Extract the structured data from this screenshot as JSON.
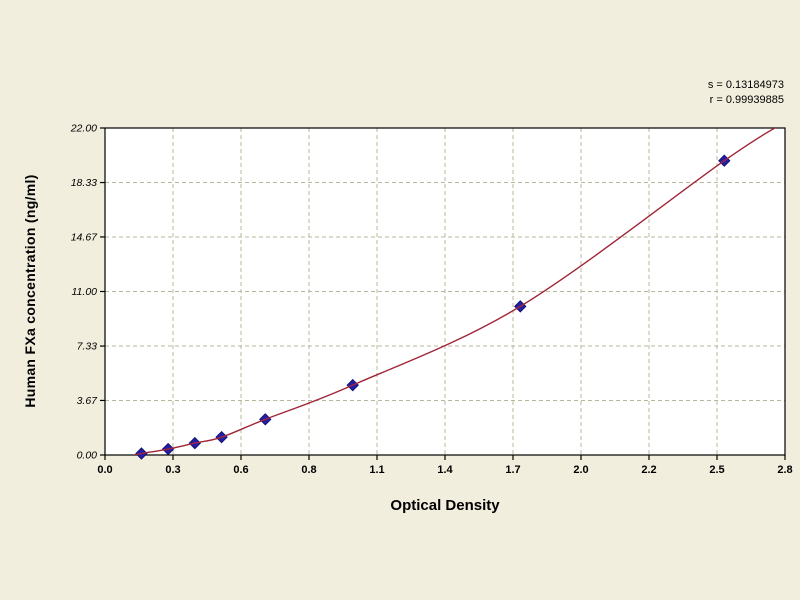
{
  "page": {
    "background_color": "#f1eedd"
  },
  "stats": {
    "s_label": "s = 0.13184973",
    "r_label": "r = 0.99939885"
  },
  "chart_data": {
    "type": "scatter",
    "title": "",
    "xlabel": "Optical Density",
    "ylabel": "Human FXa concentration (ng/ml)",
    "xlim": [
      0,
      2.8
    ],
    "ylim": [
      0,
      22
    ],
    "x_ticks": [
      0,
      0.28,
      0.56,
      0.84,
      1.12,
      1.4,
      1.68,
      1.96,
      2.24,
      2.52,
      2.8
    ],
    "x_tick_labels": [
      "0.0",
      "0.3",
      "0.6",
      "0.8",
      "1.1",
      "1.4",
      "1.7",
      "2.0",
      "2.2",
      "2.5",
      "2.8"
    ],
    "y_ticks": [
      0,
      3.67,
      7.33,
      11,
      14.67,
      18.33,
      22
    ],
    "y_tick_labels": [
      "0.00",
      "3.67",
      "7.33",
      "11.00",
      "14.67",
      "18.33",
      "22.00"
    ],
    "grid": {
      "style": "dashed",
      "color": "#b9b79a"
    },
    "legend": "none",
    "colors": {
      "marker": "#2420a6",
      "marker_edge": "#14107a",
      "curve": "#a02638",
      "plot_bg": "#ffffff",
      "axis": "#000000"
    },
    "series": [
      {
        "name": "standard-points",
        "type": "scatter",
        "marker": "diamond",
        "points": [
          [
            0.15,
            0.1
          ],
          [
            0.26,
            0.4
          ],
          [
            0.37,
            0.8
          ],
          [
            0.48,
            1.2
          ],
          [
            0.66,
            2.4
          ],
          [
            1.02,
            4.7
          ],
          [
            1.71,
            10.0
          ],
          [
            2.55,
            19.8
          ]
        ]
      },
      {
        "name": "fitted-curve",
        "type": "line",
        "points": [
          [
            0.12,
            0.0
          ],
          [
            0.15,
            0.1
          ],
          [
            0.26,
            0.4
          ],
          [
            0.37,
            0.8
          ],
          [
            0.48,
            1.2
          ],
          [
            0.66,
            2.4
          ],
          [
            1.02,
            4.7
          ],
          [
            1.71,
            10.0
          ],
          [
            2.55,
            19.8
          ],
          [
            2.79,
            22.3
          ]
        ]
      }
    ]
  }
}
